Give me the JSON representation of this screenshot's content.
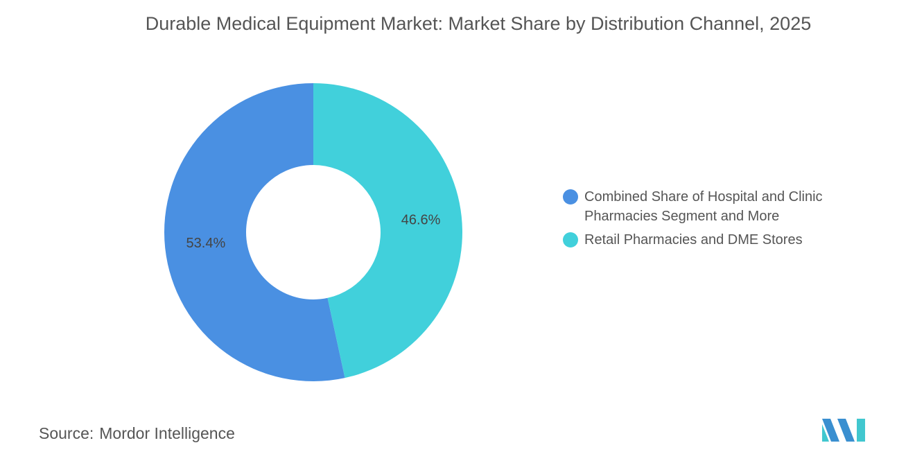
{
  "chart_data": {
    "type": "pie",
    "donut": true,
    "title": "Durable Medical Equipment Market: Market Share by Distribution Channel, 2025",
    "categories": [
      "Combined Share of Hospital and Clinic Pharmacies Segment and More",
      "Retail Pharmacies and DME Stores"
    ],
    "values": [
      53.4,
      46.6
    ],
    "value_labels": [
      "53.4%",
      "46.6%"
    ],
    "colors": [
      "#4a90e2",
      "#41d0db"
    ],
    "legend": "right",
    "source_label": "Source:",
    "source": "Mordor Intelligence"
  }
}
